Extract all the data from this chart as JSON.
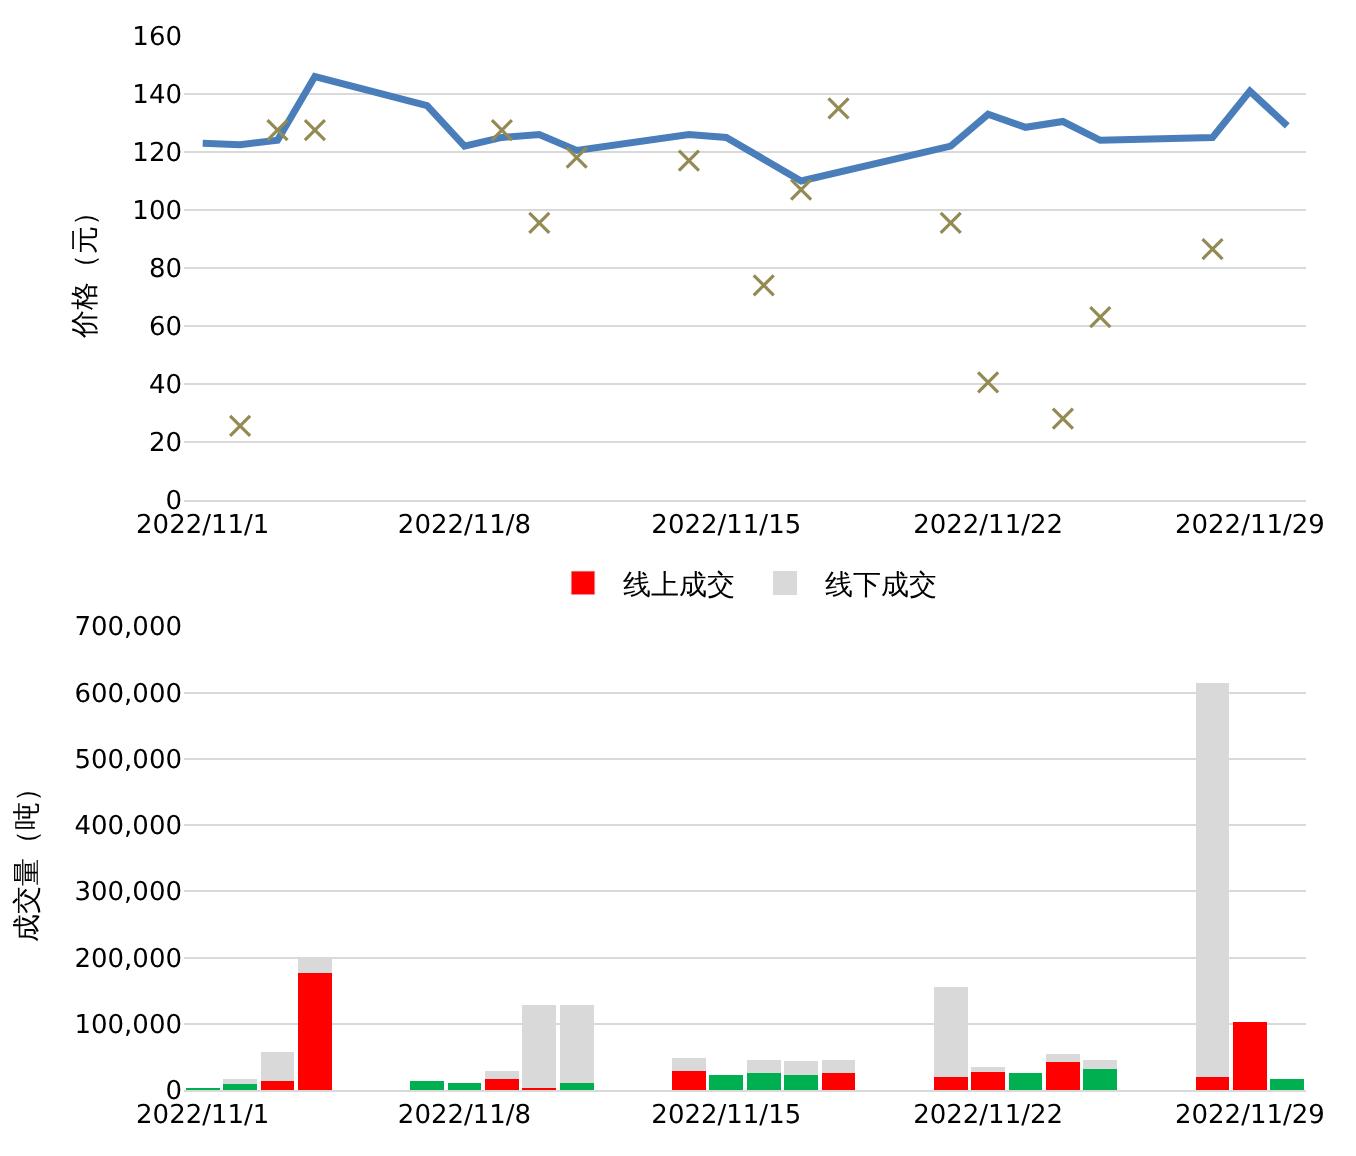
{
  "chart_data": [
    {
      "type": "line",
      "ylabel": "价格（元）",
      "xlim": [
        "2022-10-31T12:00",
        "2022-11-30T12:00"
      ],
      "xticks": [
        {
          "value": "2022-11-01",
          "label": "2022/11/1"
        },
        {
          "value": "2022-11-08",
          "label": "2022/11/8"
        },
        {
          "value": "2022-11-15",
          "label": "2022/11/15"
        },
        {
          "value": "2022-11-22",
          "label": "2022/11/22"
        },
        {
          "value": "2022-11-29",
          "label": "2022/11/29"
        }
      ],
      "ylim": [
        0,
        160
      ],
      "yticks": [
        0,
        20,
        40,
        60,
        80,
        100,
        120,
        140,
        160
      ],
      "grid": "y",
      "legend": false,
      "series": [
        {
          "type": "line",
          "color": "#4a7ebb",
          "marker": "none",
          "line_style": "solid",
          "x": [
            "2022-11-01",
            "2022-11-02",
            "2022-11-03",
            "2022-11-04",
            "2022-11-07",
            "2022-11-08",
            "2022-11-09",
            "2022-11-10",
            "2022-11-11",
            "2022-11-14",
            "2022-11-15",
            "2022-11-17",
            "2022-11-21",
            "2022-11-22",
            "2022-11-23",
            "2022-11-24",
            "2022-11-25",
            "2022-11-28",
            "2022-11-29",
            "2022-11-30"
          ],
          "values": [
            123,
            122.5,
            124,
            146,
            136,
            122,
            125,
            126,
            120.5,
            126,
            125,
            110,
            122,
            133,
            128.5,
            130.5,
            124,
            125,
            141,
            129
          ]
        },
        {
          "type": "scatter",
          "color": "#948a54",
          "marker": "cross",
          "x": [
            "2022-11-02",
            "2022-11-03",
            "2022-11-04",
            "2022-11-09",
            "2022-11-10",
            "2022-11-11",
            "2022-11-14",
            "2022-11-16",
            "2022-11-17",
            "2022-11-18",
            "2022-11-21",
            "2022-11-22",
            "2022-11-24",
            "2022-11-25",
            "2022-11-28"
          ],
          "values": [
            25.5,
            127.5,
            127.5,
            127.5,
            95.5,
            118,
            117,
            74,
            107,
            135,
            95.5,
            40.5,
            28,
            63,
            86.5
          ]
        }
      ]
    },
    {
      "type": "bar",
      "stacked": true,
      "ylabel": "成交量（吨）",
      "xlim": [
        "2022-10-31T12:00",
        "2022-11-30T12:00"
      ],
      "xticks": [
        {
          "value": "2022-11-01",
          "label": "2022/11/1"
        },
        {
          "value": "2022-11-08",
          "label": "2022/11/8"
        },
        {
          "value": "2022-11-15",
          "label": "2022/11/15"
        },
        {
          "value": "2022-11-22",
          "label": "2022/11/22"
        },
        {
          "value": "2022-11-29",
          "label": "2022/11/29"
        }
      ],
      "ylim": [
        0,
        700000
      ],
      "yticks": [
        {
          "value": 0,
          "label": "0"
        },
        {
          "value": 100000,
          "label": "100,000"
        },
        {
          "value": 200000,
          "label": "200,000"
        },
        {
          "value": 300000,
          "label": "300,000"
        },
        {
          "value": 400000,
          "label": "400,000"
        },
        {
          "value": 500000,
          "label": "500,000"
        },
        {
          "value": 600000,
          "label": "600,000"
        },
        {
          "value": 700000,
          "label": "700,000"
        }
      ],
      "grid": "y",
      "legend": "top",
      "x": [
        "2022-11-01",
        "2022-11-02",
        "2022-11-03",
        "2022-11-04",
        "2022-11-07",
        "2022-11-08",
        "2022-11-09",
        "2022-11-10",
        "2022-11-11",
        "2022-11-14",
        "2022-11-15",
        "2022-11-16",
        "2022-11-17",
        "2022-11-18",
        "2022-11-21",
        "2022-11-22",
        "2022-11-23",
        "2022-11-24",
        "2022-11-25",
        "2022-11-28",
        "2022-11-29",
        "2022-11-30"
      ],
      "series": [
        {
          "name": "线上成交",
          "color": "#ff0000",
          "colors": [
            "#00b050",
            "#00b050",
            "#ff0000",
            "#ff0000",
            "#00b050",
            "#00b050",
            "#ff0000",
            "#ff0000",
            "#00b050",
            "#ff0000",
            "#00b050",
            "#00b050",
            "#00b050",
            "#ff0000",
            "#ff0000",
            "#ff0000",
            "#00b050",
            "#ff0000",
            "#00b050",
            "#ff0000",
            "#ff0000",
            "#00b050"
          ],
          "values": [
            2000,
            10000,
            14000,
            176000,
            13000,
            10000,
            16000,
            3000,
            10000,
            29000,
            22000,
            26000,
            22000,
            26000,
            19000,
            29000,
            26000,
            42000,
            32000,
            19000,
            102000,
            16000
          ]
        },
        {
          "name": "线下成交",
          "color": "#d9d9d9",
          "values": [
            0,
            6000,
            44000,
            24000,
            0,
            0,
            13000,
            125000,
            118000,
            19000,
            0,
            19000,
            22000,
            19000,
            137000,
            6000,
            0,
            12000,
            13000,
            595000,
            0,
            0
          ]
        }
      ]
    }
  ]
}
